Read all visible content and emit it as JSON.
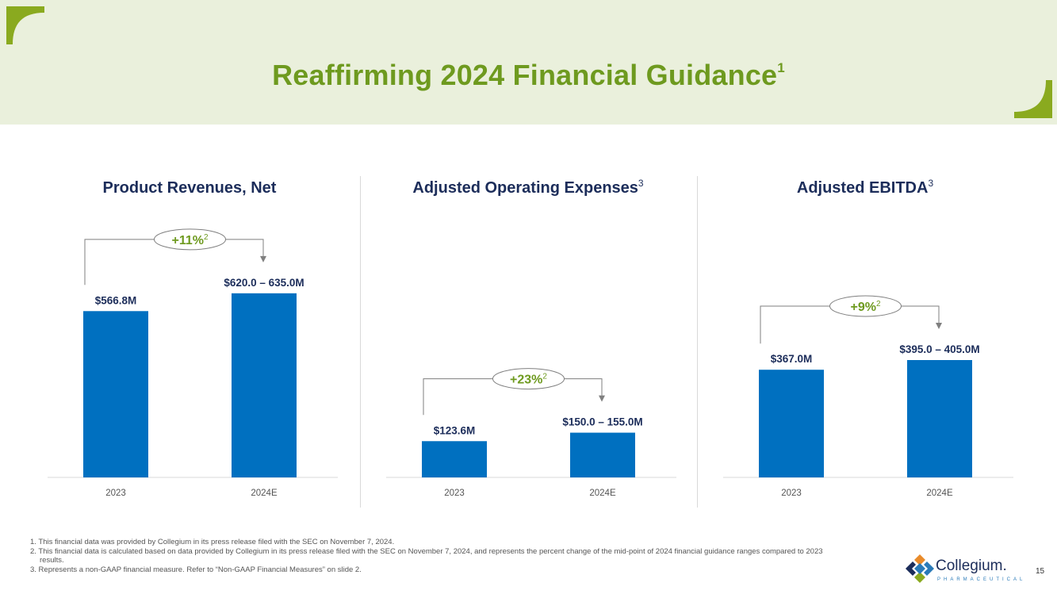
{
  "title": "Reaffirming 2024 Financial Guidance",
  "title_sup": "1",
  "colors": {
    "bar": "#0070c0",
    "accent_green": "#6e9a1f",
    "navy": "#1c2d5a",
    "header_bg": "#eaf0dc"
  },
  "chart_data": [
    {
      "type": "bar",
      "title": "Product Revenues, Net",
      "title_sup": "",
      "categories": [
        "2023",
        "2024E"
      ],
      "values": [
        566.8,
        627.5
      ],
      "data_labels": [
        "$566.8M",
        "$620.0 – 635.0M"
      ],
      "change_label": "+11%",
      "change_sup": "2",
      "xlabel": "",
      "ylabel": "",
      "ylim": [
        0,
        700
      ]
    },
    {
      "type": "bar",
      "title": "Adjusted Operating Expenses",
      "title_sup": "3",
      "categories": [
        "2023",
        "2024E"
      ],
      "values": [
        123.6,
        152.5
      ],
      "data_labels": [
        "$123.6M",
        "$150.0 – 155.0M"
      ],
      "change_label": "+23%",
      "change_sup": "2",
      "xlabel": "",
      "ylabel": "",
      "ylim": [
        0,
        700
      ]
    },
    {
      "type": "bar",
      "title": "Adjusted EBITDA",
      "title_sup": "3",
      "categories": [
        "2023",
        "2024E"
      ],
      "values": [
        367.0,
        400.0
      ],
      "data_labels": [
        "$367.0M",
        "$395.0 – 405.0M"
      ],
      "change_label": "+9%",
      "change_sup": "2",
      "xlabel": "",
      "ylabel": "",
      "ylim": [
        0,
        700
      ]
    }
  ],
  "footnotes": [
    "1. This financial data was provided by Collegium in its press release filed with the SEC on November 7, 2024.",
    "2. This financial data is calculated based on data provided by Collegium in its press release filed with the SEC on November 7, 2024, and represents the percent change of the mid-point of 2024 financial guidance ranges compared to 2023 results.",
    "3. Represents a non-GAAP financial measure. Refer to “Non-GAAP Financial Measures” on slide 2."
  ],
  "logo": {
    "name": "Collegium.",
    "sub": "PHARMACEUTICAL"
  },
  "page_number": "15"
}
